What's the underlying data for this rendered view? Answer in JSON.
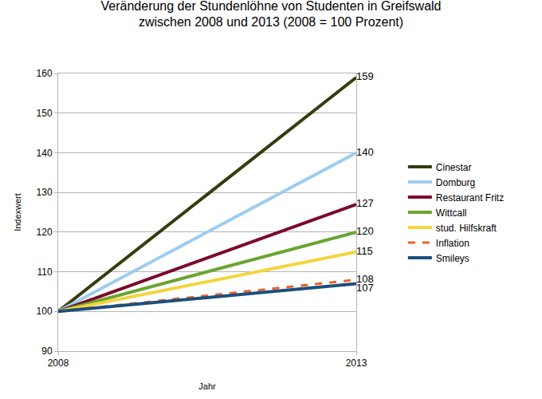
{
  "chart_data": {
    "type": "line",
    "title": "Veränderung der Stundenlöhne von Studenten in Greifswald\nzwischen 2008 und 2013 (2008 = 100 Prozent)",
    "x_label": "Jahr",
    "y_label": "Indexwert",
    "x": [
      2008,
      2013
    ],
    "xlim": [
      2008,
      2013
    ],
    "xticks": [
      2008,
      2013
    ],
    "ylim": [
      90,
      160
    ],
    "yticks": [
      90,
      100,
      110,
      120,
      130,
      140,
      150,
      160
    ],
    "grid": true,
    "legend": "right",
    "data_labels": true,
    "series": [
      {
        "name": "Cinestar",
        "color": "#333d10",
        "values": [
          100,
          159
        ],
        "value_labels": [
          null,
          "159"
        ]
      },
      {
        "name": "Domburg",
        "color": "#9dcdf0",
        "values": [
          100,
          140
        ],
        "value_labels": [
          null,
          "140"
        ]
      },
      {
        "name": "Restaurant Fritz",
        "color": "#7b0a2a",
        "values": [
          100,
          127
        ],
        "value_labels": [
          null,
          "127"
        ]
      },
      {
        "name": "Wittcall",
        "color": "#6aa531",
        "values": [
          100,
          120
        ],
        "value_labels": [
          null,
          "120"
        ]
      },
      {
        "name": "stud. Hilfskraft",
        "color": "#f4d43c",
        "values": [
          100,
          115
        ],
        "value_labels": [
          null,
          "115"
        ]
      },
      {
        "name": "Inflation",
        "color": "#e8622b",
        "line_style": "dashed",
        "values": [
          100,
          108
        ],
        "value_labels": [
          null,
          "108"
        ]
      },
      {
        "name": "Smileys",
        "color": "#1d4f7c",
        "values": [
          100,
          107
        ],
        "value_labels": [
          null,
          "107"
        ]
      }
    ]
  }
}
